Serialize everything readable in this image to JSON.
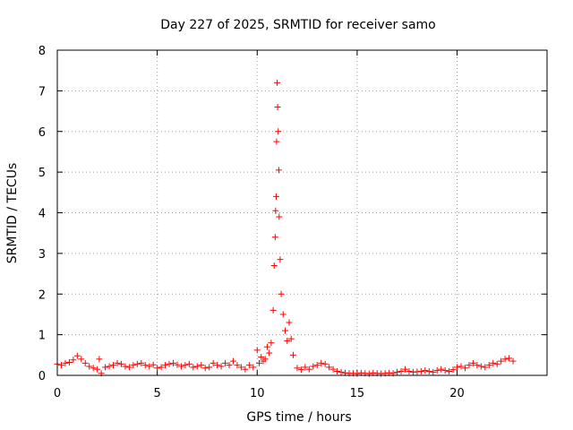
{
  "chart_data": {
    "type": "scatter",
    "title": "Day 227 of 2025, SRMTID for receiver samo",
    "xlabel": "GPS time / hours",
    "ylabel": "SRMTID / TECUs",
    "xlim": [
      0,
      24.5
    ],
    "ylim": [
      0,
      8
    ],
    "xticks": [
      "0",
      "5",
      "10",
      "15",
      "20"
    ],
    "yticks": [
      "0",
      "1",
      "2",
      "3",
      "4",
      "5",
      "6",
      "7",
      "8"
    ],
    "grid": true,
    "marker": "+",
    "series_color": "#ff0000",
    "series": [
      {
        "name": "SRMTID",
        "x": [
          0.0,
          0.2,
          0.4,
          0.6,
          0.8,
          1.0,
          1.2,
          1.4,
          1.6,
          1.8,
          2.0,
          2.1,
          2.2,
          2.4,
          2.6,
          2.8,
          3.0,
          3.2,
          3.4,
          3.6,
          3.8,
          4.0,
          4.2,
          4.4,
          4.6,
          4.8,
          5.0,
          5.2,
          5.4,
          5.6,
          5.8,
          6.0,
          6.2,
          6.4,
          6.6,
          6.8,
          7.0,
          7.2,
          7.4,
          7.6,
          7.8,
          8.0,
          8.2,
          8.4,
          8.6,
          8.8,
          9.0,
          9.2,
          9.4,
          9.6,
          9.8,
          10.0,
          10.1,
          10.2,
          10.3,
          10.4,
          10.5,
          10.6,
          10.7,
          10.8,
          10.85,
          10.9,
          10.92,
          10.95,
          10.97,
          11.0,
          11.02,
          11.05,
          11.08,
          11.1,
          11.15,
          11.2,
          11.3,
          11.4,
          11.5,
          11.6,
          11.7,
          11.8,
          12.0,
          12.2,
          12.4,
          12.6,
          12.8,
          13.0,
          13.2,
          13.4,
          13.6,
          13.8,
          14.0,
          14.2,
          14.4,
          14.6,
          14.8,
          15.0,
          15.2,
          15.4,
          15.6,
          15.8,
          16.0,
          16.2,
          16.4,
          16.6,
          16.8,
          17.0,
          17.2,
          17.4,
          17.6,
          17.8,
          18.0,
          18.2,
          18.4,
          18.6,
          18.8,
          19.0,
          19.2,
          19.4,
          19.6,
          19.8,
          20.0,
          20.2,
          20.4,
          20.6,
          20.8,
          21.0,
          21.2,
          21.4,
          21.6,
          21.8,
          22.0,
          22.2,
          22.4,
          22.6,
          22.8
        ],
        "y": [
          0.28,
          0.25,
          0.3,
          0.32,
          0.38,
          0.48,
          0.4,
          0.3,
          0.22,
          0.18,
          0.15,
          0.4,
          0.05,
          0.2,
          0.22,
          0.25,
          0.3,
          0.28,
          0.22,
          0.2,
          0.25,
          0.28,
          0.3,
          0.25,
          0.22,
          0.26,
          0.18,
          0.2,
          0.25,
          0.28,
          0.3,
          0.26,
          0.22,
          0.25,
          0.28,
          0.2,
          0.22,
          0.25,
          0.18,
          0.2,
          0.3,
          0.25,
          0.22,
          0.3,
          0.25,
          0.35,
          0.25,
          0.2,
          0.15,
          0.25,
          0.2,
          0.62,
          0.3,
          0.45,
          0.35,
          0.4,
          0.7,
          0.55,
          0.8,
          1.6,
          2.7,
          3.4,
          4.05,
          4.4,
          5.75,
          7.2,
          6.6,
          6.0,
          5.05,
          3.9,
          2.85,
          2.0,
          1.5,
          1.1,
          0.85,
          1.3,
          0.9,
          0.5,
          0.18,
          0.14,
          0.2,
          0.15,
          0.22,
          0.25,
          0.3,
          0.28,
          0.2,
          0.15,
          0.1,
          0.08,
          0.06,
          0.05,
          0.05,
          0.04,
          0.06,
          0.05,
          0.04,
          0.06,
          0.05,
          0.04,
          0.05,
          0.06,
          0.05,
          0.08,
          0.1,
          0.15,
          0.1,
          0.08,
          0.09,
          0.1,
          0.12,
          0.1,
          0.08,
          0.12,
          0.15,
          0.12,
          0.1,
          0.14,
          0.2,
          0.22,
          0.18,
          0.25,
          0.3,
          0.25,
          0.22,
          0.2,
          0.25,
          0.3,
          0.28,
          0.35,
          0.4,
          0.42,
          0.35
        ]
      }
    ]
  }
}
